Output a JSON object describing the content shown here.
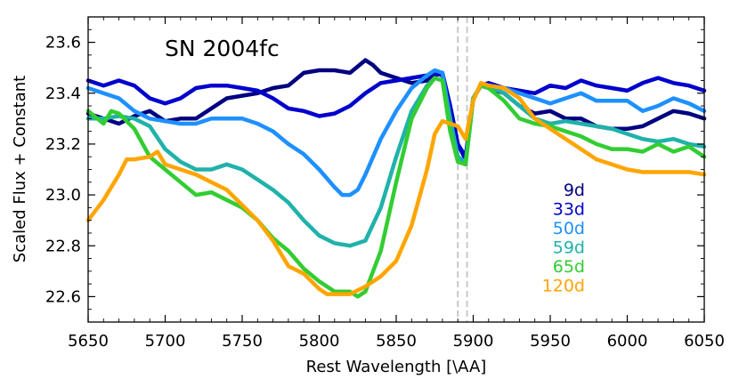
{
  "chart_data": {
    "type": "line",
    "title": "SN 2004fc",
    "xlabel": "Rest Wavelength [\\AA]",
    "ylabel": "Scaled Flux + Constant",
    "xlim": [
      5650,
      6050
    ],
    "ylim": [
      22.5,
      23.7
    ],
    "xticks": [
      5650,
      5700,
      5750,
      5800,
      5850,
      5900,
      5950,
      6000,
      6050
    ],
    "yticks": [
      22.6,
      22.8,
      23.0,
      23.2,
      23.4,
      23.6
    ],
    "xtick_labels": [
      "5650",
      "5700",
      "5750",
      "5800",
      "5850",
      "5900",
      "5950",
      "6000",
      "6050"
    ],
    "ytick_labels": [
      "22.6",
      "22.8",
      "23.0",
      "23.2",
      "23.4",
      "23.6"
    ],
    "vlines": [
      5890,
      5896
    ],
    "legend_position": "right",
    "series": [
      {
        "name": "9d",
        "color": "#000080",
        "x": [
          5650,
          5660,
          5670,
          5680,
          5690,
          5700,
          5710,
          5720,
          5730,
          5740,
          5750,
          5760,
          5770,
          5780,
          5790,
          5800,
          5810,
          5820,
          5830,
          5835,
          5840,
          5850,
          5860,
          5870,
          5875,
          5880,
          5885,
          5890,
          5895,
          5900,
          5905,
          5910,
          5920,
          5930,
          5940,
          5950,
          5960,
          5970,
          5980,
          5990,
          6000,
          6010,
          6020,
          6030,
          6040,
          6050
        ],
        "y": [
          23.32,
          23.3,
          23.28,
          23.31,
          23.33,
          23.29,
          23.3,
          23.3,
          23.34,
          23.38,
          23.39,
          23.4,
          23.42,
          23.43,
          23.48,
          23.49,
          23.49,
          23.48,
          23.53,
          23.51,
          23.48,
          23.46,
          23.44,
          23.45,
          23.47,
          23.48,
          23.35,
          23.2,
          23.14,
          23.38,
          23.43,
          23.42,
          23.4,
          23.35,
          23.32,
          23.33,
          23.3,
          23.3,
          23.27,
          23.26,
          23.26,
          23.27,
          23.3,
          23.33,
          23.32,
          23.3
        ]
      },
      {
        "name": "33d",
        "color": "#0000cd",
        "x": [
          5650,
          5660,
          5670,
          5680,
          5690,
          5700,
          5710,
          5720,
          5730,
          5740,
          5750,
          5760,
          5770,
          5780,
          5790,
          5800,
          5810,
          5820,
          5830,
          5840,
          5850,
          5860,
          5870,
          5875,
          5880,
          5885,
          5890,
          5895,
          5900,
          5905,
          5910,
          5920,
          5930,
          5940,
          5950,
          5960,
          5970,
          5980,
          5990,
          6000,
          6010,
          6020,
          6030,
          6040,
          6050
        ],
        "y": [
          23.45,
          23.43,
          23.45,
          23.43,
          23.38,
          23.36,
          23.38,
          23.42,
          23.43,
          23.43,
          23.42,
          23.41,
          23.38,
          23.34,
          23.33,
          23.31,
          23.32,
          23.35,
          23.4,
          23.44,
          23.45,
          23.46,
          23.47,
          23.48,
          23.47,
          23.35,
          23.2,
          23.15,
          23.38,
          23.43,
          23.44,
          23.42,
          23.41,
          23.4,
          23.43,
          23.42,
          23.45,
          23.43,
          23.42,
          23.41,
          23.44,
          23.46,
          23.44,
          23.43,
          23.41
        ]
      },
      {
        "name": "50d",
        "color": "#1e90ff",
        "x": [
          5650,
          5660,
          5670,
          5680,
          5690,
          5700,
          5710,
          5720,
          5730,
          5740,
          5750,
          5760,
          5770,
          5780,
          5790,
          5800,
          5810,
          5815,
          5820,
          5825,
          5830,
          5840,
          5850,
          5860,
          5870,
          5875,
          5880,
          5885,
          5890,
          5895,
          5900,
          5905,
          5910,
          5920,
          5930,
          5940,
          5950,
          5960,
          5970,
          5980,
          5990,
          6000,
          6010,
          6020,
          6030,
          6040,
          6050
        ],
        "y": [
          23.42,
          23.4,
          23.38,
          23.33,
          23.3,
          23.29,
          23.28,
          23.28,
          23.3,
          23.3,
          23.3,
          23.28,
          23.25,
          23.2,
          23.16,
          23.1,
          23.03,
          23.0,
          23.0,
          23.02,
          23.08,
          23.22,
          23.33,
          23.42,
          23.47,
          23.49,
          23.48,
          23.3,
          23.15,
          23.13,
          23.38,
          23.43,
          23.43,
          23.42,
          23.4,
          23.38,
          23.36,
          23.38,
          23.4,
          23.37,
          23.37,
          23.37,
          23.33,
          23.35,
          23.38,
          23.36,
          23.33
        ]
      },
      {
        "name": "59d",
        "color": "#20b2aa",
        "x": [
          5650,
          5660,
          5670,
          5680,
          5690,
          5700,
          5710,
          5720,
          5730,
          5740,
          5750,
          5760,
          5770,
          5780,
          5790,
          5800,
          5810,
          5820,
          5830,
          5840,
          5850,
          5860,
          5870,
          5875,
          5880,
          5885,
          5890,
          5895,
          5900,
          5905,
          5910,
          5920,
          5930,
          5940,
          5950,
          5960,
          5970,
          5980,
          5990,
          6000,
          6010,
          6020,
          6030,
          6040,
          6050
        ],
        "y": [
          23.3,
          23.3,
          23.31,
          23.3,
          23.27,
          23.18,
          23.13,
          23.1,
          23.1,
          23.12,
          23.1,
          23.06,
          23.02,
          22.97,
          22.9,
          22.84,
          22.81,
          22.8,
          22.82,
          22.95,
          23.15,
          23.33,
          23.43,
          23.46,
          23.45,
          23.3,
          23.15,
          23.12,
          23.38,
          23.43,
          23.43,
          23.4,
          23.35,
          23.3,
          23.28,
          23.29,
          23.28,
          23.27,
          23.26,
          23.24,
          23.22,
          23.21,
          23.22,
          23.2,
          23.19
        ]
      },
      {
        "name": "65d",
        "color": "#32cd32",
        "x": [
          5650,
          5660,
          5665,
          5670,
          5680,
          5690,
          5700,
          5710,
          5720,
          5730,
          5740,
          5750,
          5760,
          5770,
          5780,
          5790,
          5800,
          5810,
          5820,
          5825,
          5830,
          5840,
          5850,
          5860,
          5870,
          5875,
          5880,
          5885,
          5890,
          5895,
          5900,
          5905,
          5910,
          5920,
          5930,
          5940,
          5950,
          5960,
          5970,
          5980,
          5990,
          6000,
          6010,
          6020,
          6030,
          6040,
          6050
        ],
        "y": [
          23.33,
          23.28,
          23.33,
          23.32,
          23.26,
          23.15,
          23.1,
          23.05,
          23.0,
          23.01,
          22.98,
          22.95,
          22.9,
          22.83,
          22.78,
          22.71,
          22.66,
          22.62,
          22.62,
          22.6,
          22.62,
          22.78,
          23.05,
          23.3,
          23.42,
          23.46,
          23.45,
          23.25,
          23.13,
          23.12,
          23.38,
          23.43,
          23.42,
          23.37,
          23.3,
          23.28,
          23.27,
          23.25,
          23.23,
          23.2,
          23.18,
          23.18,
          23.17,
          23.2,
          23.17,
          23.19,
          23.15
        ]
      },
      {
        "name": "120d",
        "color": "#ffa500",
        "x": [
          5650,
          5660,
          5670,
          5675,
          5680,
          5690,
          5695,
          5700,
          5710,
          5720,
          5730,
          5740,
          5750,
          5760,
          5770,
          5780,
          5790,
          5800,
          5805,
          5810,
          5820,
          5830,
          5840,
          5850,
          5860,
          5870,
          5875,
          5880,
          5885,
          5890,
          5895,
          5900,
          5905,
          5910,
          5920,
          5930,
          5940,
          5950,
          5960,
          5970,
          5980,
          5990,
          6000,
          6010,
          6020,
          6030,
          6040,
          6050
        ],
        "y": [
          22.9,
          22.98,
          23.08,
          23.14,
          23.14,
          23.15,
          23.17,
          23.12,
          23.1,
          23.08,
          23.05,
          23.02,
          22.96,
          22.9,
          22.82,
          22.72,
          22.69,
          22.63,
          22.61,
          22.61,
          22.61,
          22.64,
          22.68,
          22.74,
          22.88,
          23.1,
          23.24,
          23.29,
          23.28,
          23.27,
          23.22,
          23.37,
          23.44,
          23.43,
          23.42,
          23.38,
          23.3,
          23.26,
          23.22,
          23.18,
          23.14,
          23.12,
          23.1,
          23.09,
          23.09,
          23.09,
          23.09,
          23.08
        ]
      }
    ]
  }
}
